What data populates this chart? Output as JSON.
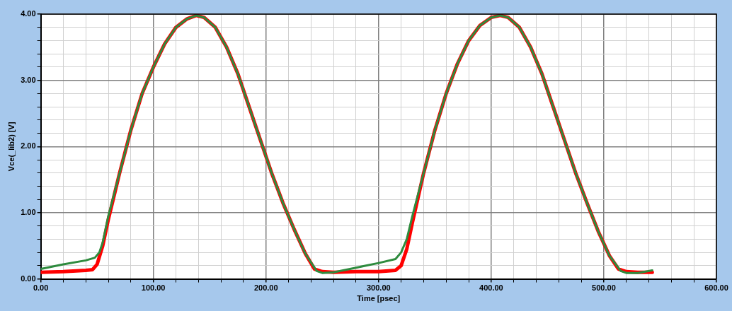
{
  "chart_data": {
    "type": "line",
    "xlabel": "Time [psec]",
    "ylabel": "Vce(_lib2) [V]",
    "xlim": [
      0,
      600
    ],
    "ylim": [
      0,
      4
    ],
    "xticks": [
      {
        "value": 0,
        "label": "0.00"
      },
      {
        "value": 20,
        "label": null
      },
      {
        "value": 40,
        "label": null
      },
      {
        "value": 60,
        "label": null
      },
      {
        "value": 80,
        "label": null
      },
      {
        "value": 100,
        "label": "100.00"
      },
      {
        "value": 120,
        "label": null
      },
      {
        "value": 140,
        "label": null
      },
      {
        "value": 160,
        "label": null
      },
      {
        "value": 180,
        "label": null
      },
      {
        "value": 200,
        "label": "200.00"
      },
      {
        "value": 220,
        "label": null
      },
      {
        "value": 240,
        "label": null
      },
      {
        "value": 260,
        "label": null
      },
      {
        "value": 280,
        "label": null
      },
      {
        "value": 300,
        "label": "300.00"
      },
      {
        "value": 320,
        "label": null
      },
      {
        "value": 340,
        "label": null
      },
      {
        "value": 360,
        "label": null
      },
      {
        "value": 380,
        "label": null
      },
      {
        "value": 400,
        "label": "400.00"
      },
      {
        "value": 420,
        "label": null
      },
      {
        "value": 440,
        "label": null
      },
      {
        "value": 460,
        "label": null
      },
      {
        "value": 480,
        "label": null
      },
      {
        "value": 500,
        "label": "500.00"
      },
      {
        "value": 520,
        "label": null
      },
      {
        "value": 540,
        "label": null
      },
      {
        "value": 560,
        "label": null
      },
      {
        "value": 580,
        "label": null
      },
      {
        "value": 600,
        "label": "600.00"
      }
    ],
    "yticks": [
      {
        "value": 0,
        "label": "0.00"
      },
      {
        "value": 0.2,
        "label": null
      },
      {
        "value": 0.4,
        "label": null
      },
      {
        "value": 0.6,
        "label": null
      },
      {
        "value": 0.8,
        "label": null
      },
      {
        "value": 1,
        "label": "1.00"
      },
      {
        "value": 1.2,
        "label": null
      },
      {
        "value": 1.4,
        "label": null
      },
      {
        "value": 1.6,
        "label": null
      },
      {
        "value": 1.8,
        "label": null
      },
      {
        "value": 2,
        "label": "2.00"
      },
      {
        "value": 2.2,
        "label": null
      },
      {
        "value": 2.4,
        "label": null
      },
      {
        "value": 2.6,
        "label": null
      },
      {
        "value": 2.8,
        "label": null
      },
      {
        "value": 3,
        "label": "3.00"
      },
      {
        "value": 3.2,
        "label": null
      },
      {
        "value": 3.4,
        "label": null
      },
      {
        "value": 3.6,
        "label": null
      },
      {
        "value": 3.8,
        "label": null
      },
      {
        "value": 4,
        "label": "4.00"
      }
    ],
    "grid": true,
    "marker": "none",
    "line_style": "solid",
    "series": [
      {
        "color": "#2e8b3e",
        "x": [
          0,
          20,
          40,
          48,
          52,
          55,
          60,
          70,
          80,
          90,
          100,
          110,
          120,
          130,
          138,
          145,
          155,
          165,
          175,
          185,
          195,
          205,
          215,
          225,
          235,
          245,
          250,
          260,
          280,
          300,
          315,
          320,
          325,
          330,
          340,
          350,
          360,
          370,
          380,
          390,
          400,
          408,
          415,
          425,
          435,
          445,
          455,
          465,
          475,
          485,
          495,
          505,
          515,
          520,
          530,
          543
        ],
        "values": [
          0.15,
          0.22,
          0.28,
          0.32,
          0.4,
          0.55,
          0.95,
          1.6,
          2.25,
          2.8,
          3.2,
          3.55,
          3.8,
          3.93,
          3.98,
          3.95,
          3.8,
          3.5,
          3.1,
          2.6,
          2.1,
          1.6,
          1.15,
          0.75,
          0.38,
          0.12,
          0.09,
          0.1,
          0.17,
          0.24,
          0.3,
          0.4,
          0.6,
          0.95,
          1.6,
          2.25,
          2.8,
          3.25,
          3.6,
          3.83,
          3.95,
          3.98,
          3.95,
          3.8,
          3.5,
          3.1,
          2.6,
          2.1,
          1.6,
          1.15,
          0.72,
          0.35,
          0.12,
          0.09,
          0.09,
          0.13
        ]
      },
      {
        "color": "#ff0000",
        "x": [
          0,
          20,
          40,
          46,
          50,
          55,
          60,
          70,
          80,
          90,
          100,
          110,
          120,
          130,
          138,
          145,
          155,
          165,
          175,
          185,
          195,
          205,
          215,
          225,
          235,
          243,
          250,
          260,
          280,
          300,
          315,
          320,
          325,
          330,
          340,
          350,
          360,
          370,
          380,
          390,
          400,
          408,
          415,
          425,
          435,
          445,
          455,
          465,
          475,
          485,
          495,
          505,
          513,
          520,
          530,
          543
        ],
        "values": [
          0.1,
          0.11,
          0.13,
          0.14,
          0.22,
          0.5,
          0.9,
          1.6,
          2.25,
          2.8,
          3.2,
          3.55,
          3.8,
          3.93,
          3.98,
          3.95,
          3.8,
          3.5,
          3.1,
          2.6,
          2.1,
          1.6,
          1.15,
          0.75,
          0.38,
          0.15,
          0.11,
          0.1,
          0.11,
          0.11,
          0.13,
          0.2,
          0.45,
          0.85,
          1.6,
          2.25,
          2.8,
          3.25,
          3.6,
          3.83,
          3.95,
          3.98,
          3.95,
          3.8,
          3.5,
          3.1,
          2.6,
          2.1,
          1.6,
          1.15,
          0.72,
          0.35,
          0.15,
          0.11,
          0.1,
          0.1
        ]
      }
    ]
  }
}
